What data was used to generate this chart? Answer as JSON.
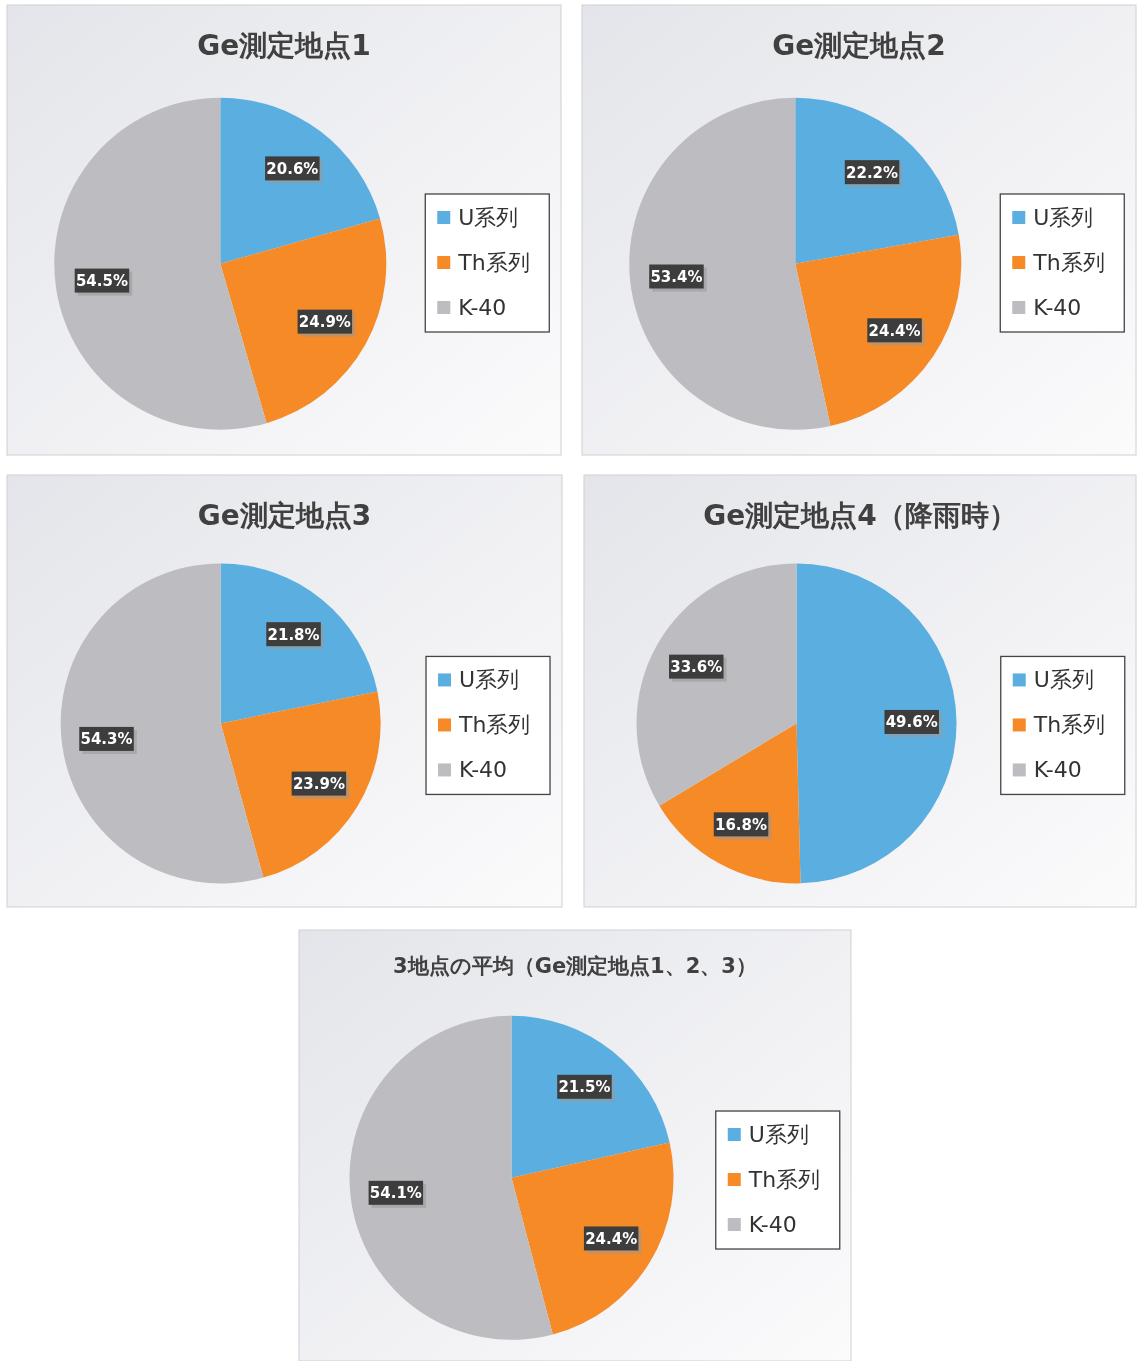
{
  "chart_data": [
    {
      "type": "pie",
      "title": "Ge測定地点1",
      "categories": [
        "U系列",
        "Th系列",
        "K-40"
      ],
      "values": [
        20.6,
        24.9,
        54.5
      ],
      "colors": [
        "#5aaee0",
        "#f58a26",
        "#bdbcc1"
      ],
      "legend": "right",
      "value_labels": [
        "20.6%",
        "24.9%",
        "54.5%"
      ]
    },
    {
      "type": "pie",
      "title": "Ge測定地点2",
      "categories": [
        "U系列",
        "Th系列",
        "K-40"
      ],
      "values": [
        22.2,
        24.4,
        53.4
      ],
      "colors": [
        "#5aaee0",
        "#f58a26",
        "#bdbcc1"
      ],
      "legend": "right",
      "value_labels": [
        "22.2%",
        "24.4%",
        "53.4%"
      ]
    },
    {
      "type": "pie",
      "title": "Ge測定地点3",
      "categories": [
        "U系列",
        "Th系列",
        "K-40"
      ],
      "values": [
        21.8,
        23.9,
        54.3
      ],
      "colors": [
        "#5aaee0",
        "#f58a26",
        "#bdbcc1"
      ],
      "legend": "right",
      "value_labels": [
        "21.8%",
        "23.9%",
        "54.3%"
      ]
    },
    {
      "type": "pie",
      "title": "Ge測定地点4（降雨時）",
      "categories": [
        "U系列",
        "Th系列",
        "K-40"
      ],
      "values": [
        49.6,
        16.8,
        33.6
      ],
      "colors": [
        "#5aaee0",
        "#f58a26",
        "#bdbcc1"
      ],
      "legend": "right",
      "value_labels": [
        "49.6%",
        "16.8%",
        "33.6%"
      ]
    },
    {
      "type": "pie",
      "title": "3地点の平均（Ge測定地点1、2、3）",
      "categories": [
        "U系列",
        "Th系列",
        "K-40"
      ],
      "values": [
        21.5,
        24.4,
        54.1
      ],
      "colors": [
        "#5aaee0",
        "#f58a26",
        "#bdbcc1"
      ],
      "legend": "right",
      "value_labels": [
        "21.5%",
        "24.4%",
        "54.1%"
      ]
    }
  ]
}
